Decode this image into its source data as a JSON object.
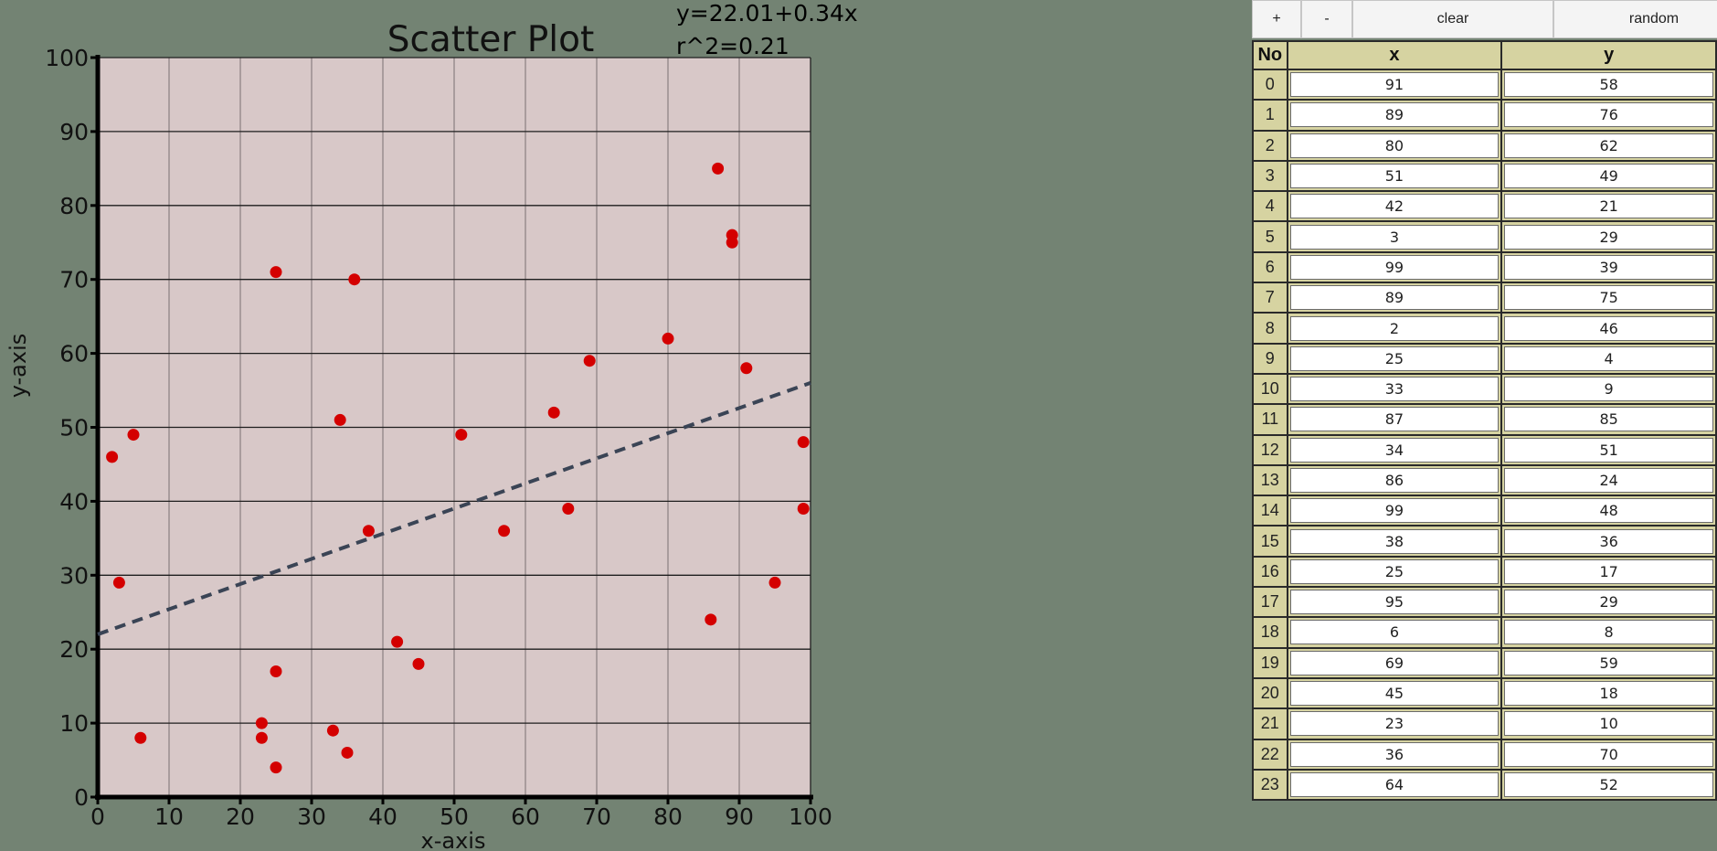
{
  "chart_data": {
    "type": "scatter",
    "title": "Scatter Plot",
    "xlabel": "x-axis",
    "ylabel": "y-axis",
    "xlim": [
      0,
      100
    ],
    "ylim": [
      0,
      100
    ],
    "xticks": [
      "0",
      "10",
      "20",
      "30",
      "40",
      "50",
      "60",
      "70",
      "80",
      "90",
      "100"
    ],
    "yticks": [
      "0",
      "10",
      "20",
      "30",
      "40",
      "50",
      "60",
      "70",
      "80",
      "90",
      "100"
    ],
    "grid": true,
    "points": [
      {
        "x": 91,
        "y": 58
      },
      {
        "x": 89,
        "y": 76
      },
      {
        "x": 80,
        "y": 62
      },
      {
        "x": 51,
        "y": 49
      },
      {
        "x": 42,
        "y": 21
      },
      {
        "x": 3,
        "y": 29
      },
      {
        "x": 99,
        "y": 39
      },
      {
        "x": 89,
        "y": 75
      },
      {
        "x": 2,
        "y": 46
      },
      {
        "x": 25,
        "y": 4
      },
      {
        "x": 33,
        "y": 9
      },
      {
        "x": 87,
        "y": 85
      },
      {
        "x": 34,
        "y": 51
      },
      {
        "x": 86,
        "y": 24
      },
      {
        "x": 99,
        "y": 48
      },
      {
        "x": 38,
        "y": 36
      },
      {
        "x": 25,
        "y": 17
      },
      {
        "x": 95,
        "y": 29
      },
      {
        "x": 6,
        "y": 8
      },
      {
        "x": 69,
        "y": 59
      },
      {
        "x": 45,
        "y": 18
      },
      {
        "x": 23,
        "y": 10
      },
      {
        "x": 36,
        "y": 70
      },
      {
        "x": 64,
        "y": 52
      },
      {
        "x": 25,
        "y": 71
      },
      {
        "x": 5,
        "y": 49
      },
      {
        "x": 57,
        "y": 36
      },
      {
        "x": 66,
        "y": 39
      },
      {
        "x": 35,
        "y": 6
      },
      {
        "x": 23,
        "y": 8
      }
    ],
    "regression": {
      "intercept": 22.01,
      "slope": 0.34,
      "equation": "y=22.01+0.34x",
      "r2": "r^2=0.21"
    },
    "colors": {
      "plot_bg": "#d8c8c8",
      "point": "#d40000",
      "line": "#3a4455"
    }
  },
  "toolbar": {
    "add": "+",
    "remove": "-",
    "clear": "clear",
    "random": "random"
  },
  "table": {
    "headers": {
      "no": "No",
      "x": "x",
      "y": "y"
    },
    "rows": [
      {
        "no": "0",
        "x": "91",
        "y": "58"
      },
      {
        "no": "1",
        "x": "89",
        "y": "76"
      },
      {
        "no": "2",
        "x": "80",
        "y": "62"
      },
      {
        "no": "3",
        "x": "51",
        "y": "49"
      },
      {
        "no": "4",
        "x": "42",
        "y": "21"
      },
      {
        "no": "5",
        "x": "3",
        "y": "29"
      },
      {
        "no": "6",
        "x": "99",
        "y": "39"
      },
      {
        "no": "7",
        "x": "89",
        "y": "75"
      },
      {
        "no": "8",
        "x": "2",
        "y": "46"
      },
      {
        "no": "9",
        "x": "25",
        "y": "4"
      },
      {
        "no": "10",
        "x": "33",
        "y": "9"
      },
      {
        "no": "11",
        "x": "87",
        "y": "85"
      },
      {
        "no": "12",
        "x": "34",
        "y": "51"
      },
      {
        "no": "13",
        "x": "86",
        "y": "24"
      },
      {
        "no": "14",
        "x": "99",
        "y": "48"
      },
      {
        "no": "15",
        "x": "38",
        "y": "36"
      },
      {
        "no": "16",
        "x": "25",
        "y": "17"
      },
      {
        "no": "17",
        "x": "95",
        "y": "29"
      },
      {
        "no": "18",
        "x": "6",
        "y": "8"
      },
      {
        "no": "19",
        "x": "69",
        "y": "59"
      },
      {
        "no": "20",
        "x": "45",
        "y": "18"
      },
      {
        "no": "21",
        "x": "23",
        "y": "10"
      },
      {
        "no": "22",
        "x": "36",
        "y": "70"
      },
      {
        "no": "23",
        "x": "64",
        "y": "52"
      }
    ]
  }
}
